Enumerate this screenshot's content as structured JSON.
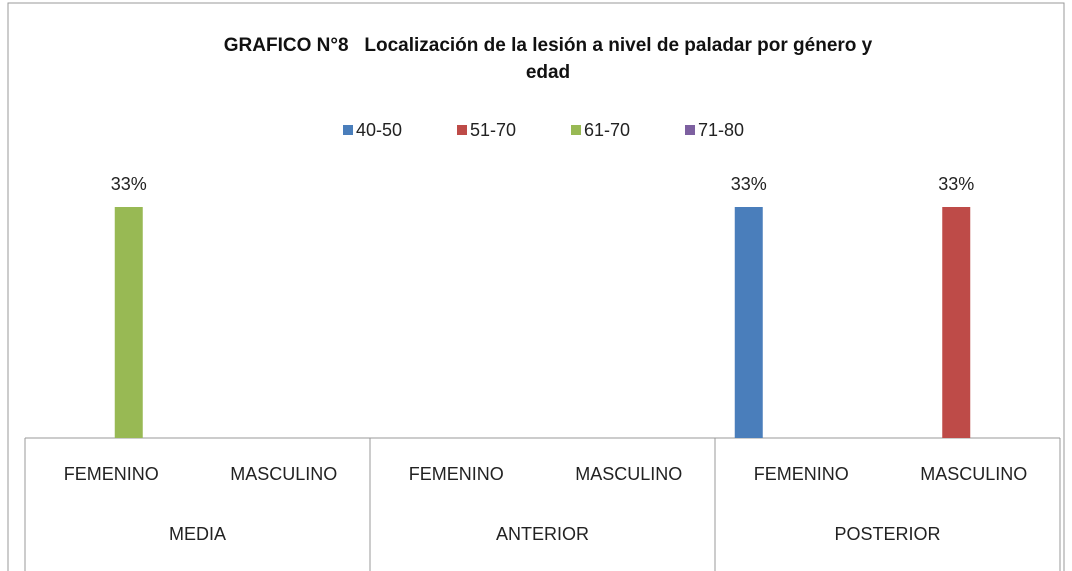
{
  "chart_data": {
    "type": "bar",
    "title": "GRAFICO N°8   Localización de la lesión a nivel de paladar por género y edad",
    "categories": [
      "FEMENINO",
      "MASCULINO",
      "FEMENINO",
      "MASCULINO",
      "FEMENINO",
      "MASCULINO"
    ],
    "category_groups": [
      "MEDIA",
      "ANTERIOR",
      "POSTERIOR"
    ],
    "series": [
      {
        "name": "40-50",
        "color": "#4a7ebb",
        "values": [
          null,
          null,
          null,
          null,
          33,
          null
        ],
        "value_labels": [
          null,
          null,
          null,
          null,
          "33%",
          null
        ]
      },
      {
        "name": "51-70",
        "color": "#be4b48",
        "values": [
          null,
          null,
          null,
          null,
          null,
          33
        ],
        "value_labels": [
          null,
          null,
          null,
          null,
          null,
          "33%"
        ]
      },
      {
        "name": "61-70",
        "color": "#98b954",
        "values": [
          33,
          null,
          null,
          null,
          null,
          null
        ],
        "value_labels": [
          "33%",
          null,
          null,
          null,
          null,
          null
        ]
      },
      {
        "name": "71-80",
        "color": "#7d60a0",
        "values": [
          null,
          null,
          null,
          null,
          null,
          null
        ],
        "value_labels": [
          null,
          null,
          null,
          null,
          null,
          null
        ]
      }
    ],
    "legend": "top"
  }
}
